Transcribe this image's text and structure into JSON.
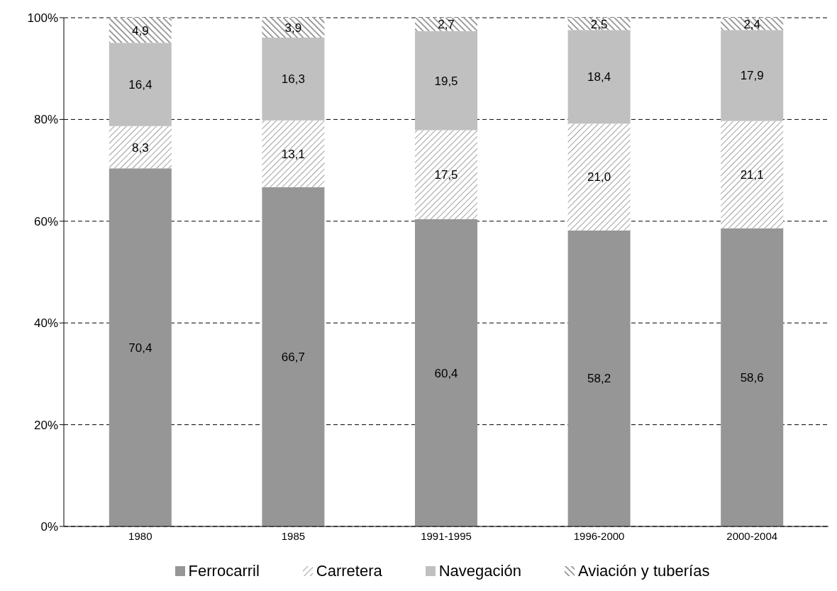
{
  "chart_data": {
    "type": "bar",
    "stacked": true,
    "categories": [
      "1980",
      "1985",
      "1991-1995",
      "1996-2000",
      "2000-2004"
    ],
    "series": [
      {
        "name": "Ferrocarril",
        "color": "#969696",
        "values": [
          70.4,
          66.7,
          60.4,
          58.2,
          58.6
        ],
        "value_labels": [
          "70,4",
          "66,7",
          "60,4",
          "58,2",
          "58,6"
        ]
      },
      {
        "name": "Carretera",
        "color": "#808080",
        "values": [
          8.3,
          13.1,
          17.5,
          21.0,
          21.1
        ],
        "value_labels": [
          "8,3",
          "13,1",
          "17,5",
          "21,0",
          "21,1"
        ]
      },
      {
        "name": "Navegación",
        "color": "#c0c0c0",
        "values": [
          16.4,
          16.3,
          19.5,
          18.4,
          17.9
        ],
        "value_labels": [
          "16,4",
          "16,3",
          "19,5",
          "18,4",
          "17,9"
        ]
      },
      {
        "name": "Aviación y tuberías",
        "color": "#808080",
        "values": [
          4.9,
          3.9,
          2.7,
          2.5,
          2.4
        ],
        "value_labels": [
          "4,9",
          "3,9",
          "2,7",
          "2,5",
          "2,4"
        ]
      }
    ],
    "ylim": [
      0,
      100
    ],
    "yticks": [
      {
        "value": 0,
        "label": "0%"
      },
      {
        "value": 20,
        "label": "20%"
      },
      {
        "value": 40,
        "label": "40%"
      },
      {
        "value": 60,
        "label": "60%"
      },
      {
        "value": 80,
        "label": "80%"
      },
      {
        "value": 100,
        "label": "100%"
      }
    ],
    "grid": "y",
    "legend": "bottom"
  }
}
